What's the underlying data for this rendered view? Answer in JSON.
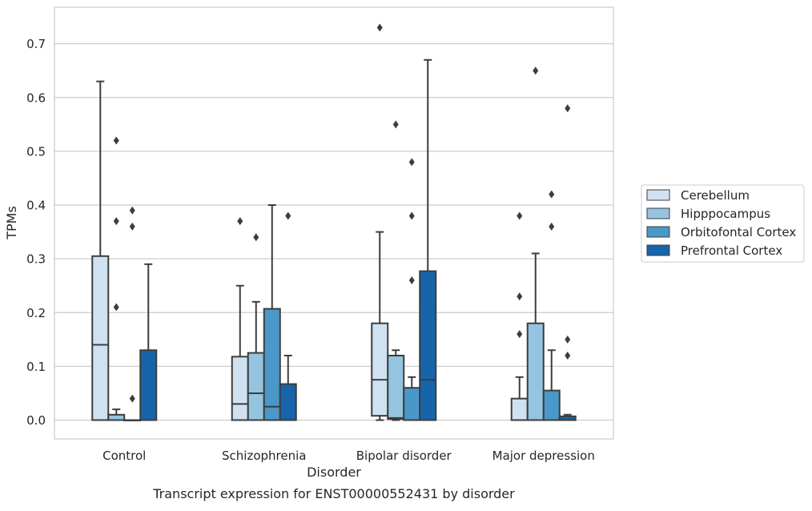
{
  "chart_data": {
    "type": "boxplot",
    "title": "",
    "caption": "Transcript expression for ENST00000552431 by disorder",
    "xlabel": "Disorder",
    "ylabel": "TPMs",
    "ylim": [
      -0.035,
      0.768
    ],
    "yticks": [
      0.0,
      0.1,
      0.2,
      0.3,
      0.4,
      0.5,
      0.6,
      0.7
    ],
    "ytick_labels": [
      "0.0",
      "0.1",
      "0.2",
      "0.3",
      "0.4",
      "0.5",
      "0.6",
      "0.7"
    ],
    "grid": "horizontal",
    "legend_position": "right",
    "categories": [
      "Control",
      "Schizophrenia",
      "Bipolar disorder",
      "Major depression"
    ],
    "series": [
      {
        "name": "Cerebellum",
        "color": "#d0e1f2",
        "boxes": [
          {
            "whislo": 0.0,
            "q1": 0.0,
            "med": 0.14,
            "q3": 0.305,
            "whishi": 0.63,
            "fliers": []
          },
          {
            "whislo": 0.0,
            "q1": 0.0,
            "med": 0.03,
            "q3": 0.118,
            "whishi": 0.25,
            "fliers": [
              0.37
            ]
          },
          {
            "whislo": 0.0,
            "q1": 0.008,
            "med": 0.075,
            "q3": 0.18,
            "whishi": 0.35,
            "fliers": [
              0.73
            ]
          },
          {
            "whislo": 0.0,
            "q1": 0.0,
            "med": 0.0,
            "q3": 0.04,
            "whishi": 0.08,
            "fliers": [
              0.16,
              0.23,
              0.38
            ]
          }
        ]
      },
      {
        "name": "Hipppocampus",
        "color": "#94c4df",
        "boxes": [
          {
            "whislo": 0.0,
            "q1": 0.0,
            "med": 0.0,
            "q3": 0.01,
            "whishi": 0.02,
            "fliers": [
              0.21,
              0.37,
              0.52
            ]
          },
          {
            "whislo": 0.0,
            "q1": 0.0,
            "med": 0.05,
            "q3": 0.125,
            "whishi": 0.22,
            "fliers": [
              0.34
            ]
          },
          {
            "whislo": 0.0,
            "q1": 0.002,
            "med": 0.004,
            "q3": 0.12,
            "whishi": 0.13,
            "fliers": [
              0.55
            ]
          },
          {
            "whislo": 0.0,
            "q1": 0.0,
            "med": 0.0,
            "q3": 0.18,
            "whishi": 0.31,
            "fliers": [
              0.65
            ]
          }
        ]
      },
      {
        "name": "Orbitofontal Cortex",
        "color": "#4a98c9",
        "boxes": [
          {
            "whislo": 0.0,
            "q1": 0.0,
            "med": 0.0,
            "q3": 0.0,
            "whishi": 0.0,
            "fliers": [
              0.04,
              0.36,
              0.39
            ]
          },
          {
            "whislo": 0.0,
            "q1": 0.0,
            "med": 0.025,
            "q3": 0.207,
            "whishi": 0.4,
            "fliers": []
          },
          {
            "whislo": 0.0,
            "q1": 0.0,
            "med": 0.0,
            "q3": 0.06,
            "whishi": 0.08,
            "fliers": [
              0.26,
              0.38,
              0.48
            ]
          },
          {
            "whislo": 0.0,
            "q1": 0.0,
            "med": 0.0,
            "q3": 0.055,
            "whishi": 0.13,
            "fliers": [
              0.36,
              0.42
            ]
          }
        ]
      },
      {
        "name": "Prefrontal Cortex",
        "color": "#1764ab",
        "boxes": [
          {
            "whislo": 0.0,
            "q1": 0.0,
            "med": 0.0,
            "q3": 0.13,
            "whishi": 0.29,
            "fliers": []
          },
          {
            "whislo": 0.0,
            "q1": 0.0,
            "med": 0.0,
            "q3": 0.067,
            "whishi": 0.12,
            "fliers": [
              0.38
            ]
          },
          {
            "whislo": 0.0,
            "q1": 0.0,
            "med": 0.075,
            "q3": 0.277,
            "whishi": 0.67,
            "fliers": []
          },
          {
            "whislo": 0.0,
            "q1": 0.0,
            "med": 0.0,
            "q3": 0.007,
            "whishi": 0.01,
            "fliers": [
              0.12,
              0.15,
              0.58
            ]
          }
        ]
      }
    ]
  }
}
